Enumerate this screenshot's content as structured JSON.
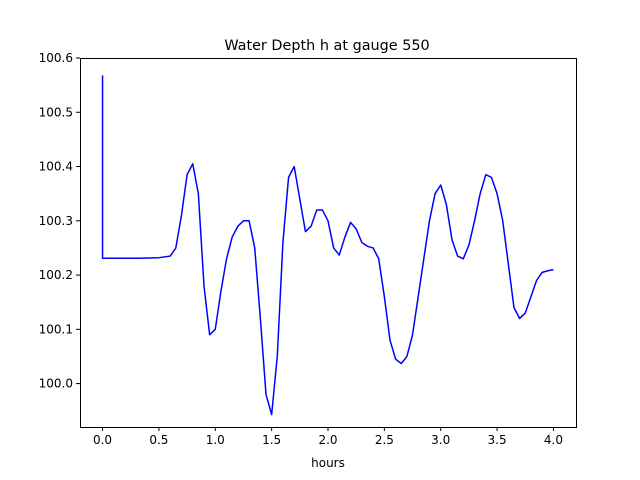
{
  "chart_data": {
    "type": "line",
    "title": "Water Depth h at gauge 550",
    "xlabel": "hours",
    "ylabel": "",
    "xlim": [
      -0.2,
      4.2
    ],
    "ylim": [
      99.92,
      100.6
    ],
    "x_ticks": [
      0.0,
      0.5,
      1.0,
      1.5,
      2.0,
      2.5,
      3.0,
      3.5,
      4.0
    ],
    "x_tick_labels": [
      "0.0",
      "0.5",
      "1.0",
      "1.5",
      "2.0",
      "2.5",
      "3.0",
      "3.5",
      "4.0"
    ],
    "y_ticks": [
      100.0,
      100.1,
      100.2,
      100.3,
      100.4,
      100.5,
      100.6
    ],
    "y_tick_labels": [
      "100.0",
      "100.1",
      "100.2",
      "100.3",
      "100.4",
      "100.5",
      "100.6"
    ],
    "grid": false,
    "legend": "none",
    "series_color": "#0000ff",
    "series": [
      {
        "name": "",
        "x": [
          0.0,
          0.0,
          0.0,
          0.1,
          0.3,
          0.5,
          0.6,
          0.65,
          0.7,
          0.75,
          0.8,
          0.85,
          0.9,
          0.95,
          1.0,
          1.05,
          1.1,
          1.15,
          1.2,
          1.25,
          1.3,
          1.35,
          1.4,
          1.45,
          1.5,
          1.55,
          1.6,
          1.65,
          1.7,
          1.75,
          1.8,
          1.85,
          1.9,
          1.95,
          2.0,
          2.05,
          2.1,
          2.15,
          2.2,
          2.25,
          2.3,
          2.35,
          2.4,
          2.45,
          2.5,
          2.55,
          2.6,
          2.65,
          2.7,
          2.75,
          2.8,
          2.85,
          2.9,
          2.95,
          3.0,
          3.05,
          3.1,
          3.15,
          3.2,
          3.25,
          3.3,
          3.35,
          3.4,
          3.45,
          3.5,
          3.55,
          3.6,
          3.65,
          3.7,
          3.75,
          3.8,
          3.85,
          3.9,
          3.95,
          4.0
        ],
        "y": [
          100.568,
          100.232,
          100.231,
          100.231,
          100.231,
          100.232,
          100.235,
          100.25,
          100.31,
          100.385,
          100.405,
          100.35,
          100.18,
          100.09,
          100.1,
          100.17,
          100.23,
          100.27,
          100.29,
          100.3,
          100.3,
          100.25,
          100.12,
          99.98,
          99.943,
          100.05,
          100.26,
          100.38,
          100.4,
          100.34,
          100.28,
          100.29,
          100.32,
          100.32,
          100.3,
          100.25,
          100.237,
          100.27,
          100.297,
          100.285,
          100.26,
          100.253,
          100.25,
          100.23,
          100.16,
          100.08,
          100.045,
          100.037,
          100.05,
          100.09,
          100.16,
          100.23,
          100.3,
          100.35,
          100.366,
          100.33,
          100.265,
          100.235,
          100.23,
          100.255,
          100.3,
          100.35,
          100.385,
          100.38,
          100.35,
          100.3,
          100.22,
          100.14,
          100.12,
          100.13,
          100.16,
          100.19,
          100.205,
          100.208,
          100.21
        ]
      }
    ]
  }
}
